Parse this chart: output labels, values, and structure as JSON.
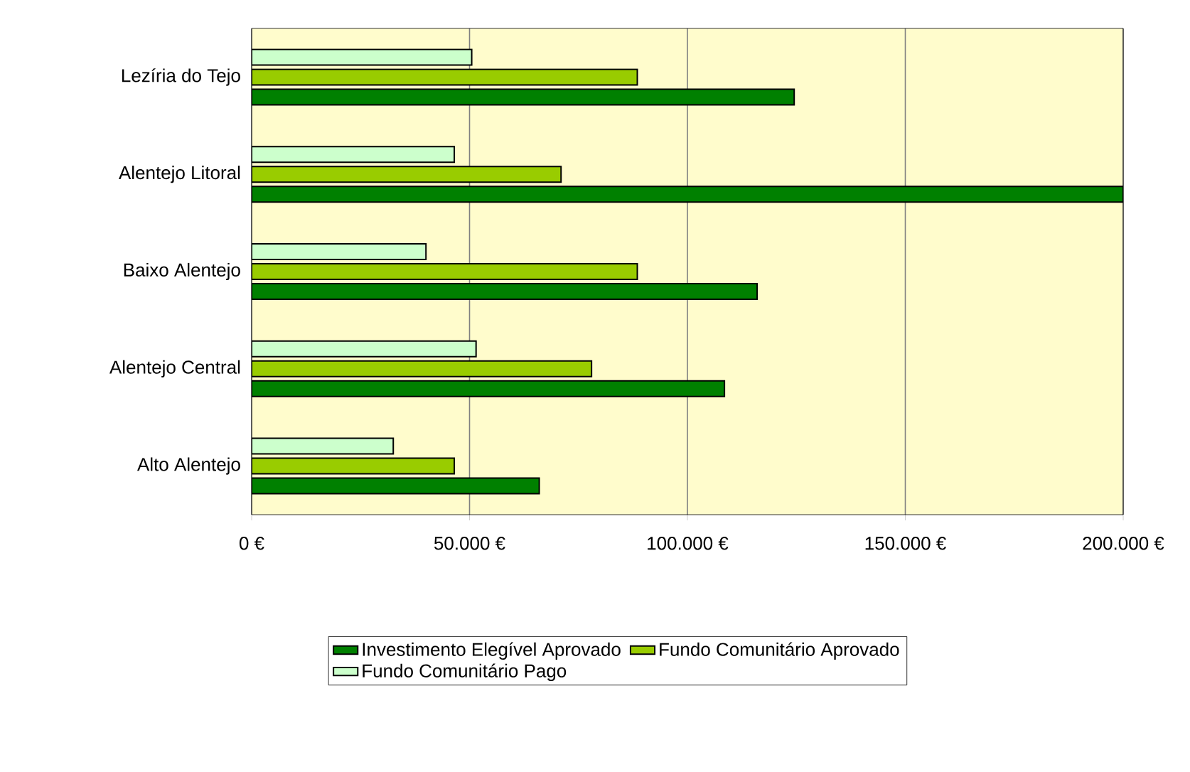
{
  "chart_data": {
    "type": "bar",
    "orientation": "horizontal",
    "categories": [
      "Lezíria do Tejo",
      "Alentejo Litoral",
      "Baixo Alentejo",
      "Alentejo Central",
      "Alto Alentejo"
    ],
    "series": [
      {
        "name": "Investimento Elegível Aprovado",
        "color": "#008000",
        "values": [
          124500,
          200000,
          116000,
          108500,
          66000
        ]
      },
      {
        "name": "Fundo Comunitário Aprovado",
        "color": "#99cc00",
        "values": [
          88500,
          71000,
          88500,
          78000,
          46500
        ]
      },
      {
        "name": "Fundo Comunitário Pago",
        "color": "#ccffcc",
        "values": [
          50500,
          46500,
          40000,
          51500,
          32500
        ]
      }
    ],
    "xlim": [
      0,
      200000
    ],
    "xticks": [
      {
        "value": 0,
        "label": "0 €"
      },
      {
        "value": 50000,
        "label": "50.000 €"
      },
      {
        "value": 100000,
        "label": "100.000 €"
      },
      {
        "value": 150000,
        "label": "150.000 €"
      },
      {
        "value": 200000,
        "label": "200.000 €"
      }
    ],
    "grid": "x",
    "legend": "bottom"
  }
}
